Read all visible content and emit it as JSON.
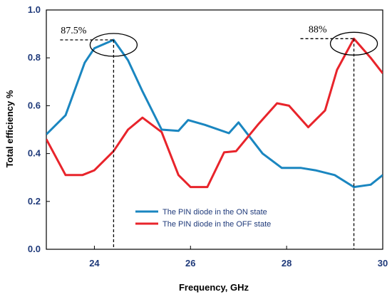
{
  "chart_data": {
    "type": "line",
    "title": "",
    "xlabel": "Frequency, GHz",
    "ylabel": "Total efficiency %",
    "xlim": [
      23,
      30
    ],
    "ylim": [
      0,
      1
    ],
    "xticks": [
      24,
      26,
      28,
      30
    ],
    "yticks": [
      0.0,
      0.2,
      0.4,
      0.6,
      0.8,
      1.0
    ],
    "ytick_labels": [
      "0.0",
      "0.2",
      "0.4",
      "0.6",
      "0.8",
      "1.0"
    ],
    "grid": false,
    "legend_position": "bottom-center",
    "series": [
      {
        "name": "The PIN diode in the ON state",
        "color": "#1a86c0",
        "x": [
          23.0,
          23.4,
          23.8,
          24.0,
          24.4,
          24.7,
          25.0,
          25.4,
          25.75,
          25.95,
          26.3,
          26.8,
          27.0,
          27.5,
          27.9,
          28.3,
          28.6,
          29.0,
          29.4,
          29.75,
          30.0
        ],
        "y": [
          0.48,
          0.56,
          0.78,
          0.84,
          0.875,
          0.79,
          0.66,
          0.5,
          0.495,
          0.54,
          0.52,
          0.485,
          0.53,
          0.4,
          0.34,
          0.34,
          0.33,
          0.31,
          0.26,
          0.27,
          0.31
        ]
      },
      {
        "name": "The PIN diode in the OFF state",
        "color": "#e8242b",
        "x": [
          23.0,
          23.4,
          23.75,
          24.0,
          24.4,
          24.7,
          25.0,
          25.4,
          25.75,
          26.0,
          26.35,
          26.7,
          26.95,
          27.4,
          27.8,
          28.05,
          28.45,
          28.8,
          29.05,
          29.4,
          29.75,
          30.0
        ],
        "y": [
          0.46,
          0.31,
          0.31,
          0.33,
          0.41,
          0.5,
          0.55,
          0.49,
          0.31,
          0.26,
          0.26,
          0.405,
          0.41,
          0.52,
          0.61,
          0.6,
          0.51,
          0.58,
          0.75,
          0.88,
          0.8,
          0.735
        ]
      }
    ],
    "annotations": [
      {
        "text": "87.5%",
        "x": 24.4,
        "y": 0.875
      },
      {
        "text": "88%",
        "x": 29.4,
        "y": 0.88
      }
    ]
  }
}
